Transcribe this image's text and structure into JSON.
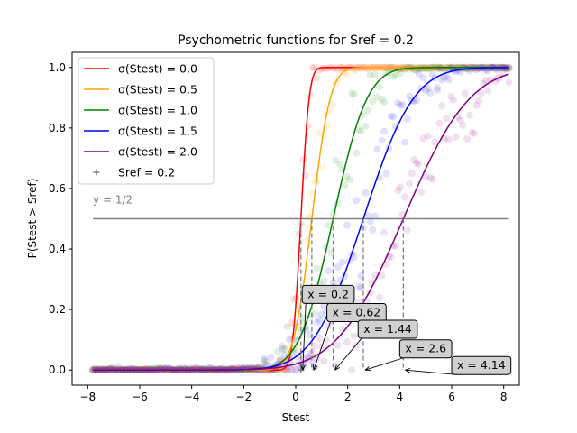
{
  "chart_data": {
    "type": "line",
    "title": "Psychometric functions for Sref = 0.2",
    "xlabel": "Stest",
    "ylabel": "P(Stest > Sref)",
    "xlim": [
      -8.6,
      8.6
    ],
    "ylim": [
      -0.05,
      1.05
    ],
    "xticks": [
      -8,
      -6,
      -4,
      -2,
      0,
      2,
      4,
      6,
      8
    ],
    "yticks": [
      0.0,
      0.2,
      0.4,
      0.6,
      0.8,
      1.0
    ],
    "grid": false,
    "legend_position": "top-left",
    "reference": {
      "label": "Sref = 0.2",
      "x": 0.2,
      "y": 0.0,
      "color": "#808080"
    },
    "hline": {
      "y": 0.5,
      "label": "y = 1/2",
      "color": "#808080"
    },
    "series": [
      {
        "name": "σ(Stest) = 0.0",
        "sigma": 0.0,
        "mean": 0.2,
        "color": "#ff0000",
        "annotation": "x = 0.2"
      },
      {
        "name": "σ(Stest) = 0.5",
        "sigma": 0.5,
        "mean": 0.62,
        "color": "#ffa500",
        "annotation": "x = 0.62"
      },
      {
        "name": "σ(Stest) = 1.0",
        "sigma": 1.0,
        "mean": 1.44,
        "color": "#008000",
        "annotation": "x = 1.44"
      },
      {
        "name": "σ(Stest) = 1.5",
        "sigma": 1.5,
        "mean": 2.6,
        "color": "#0000ff",
        "annotation": "x = 2.6"
      },
      {
        "name": "σ(Stest) = 2.0",
        "sigma": 2.0,
        "mean": 4.14,
        "color": "#800080",
        "annotation": "x = 4.14"
      }
    ]
  }
}
